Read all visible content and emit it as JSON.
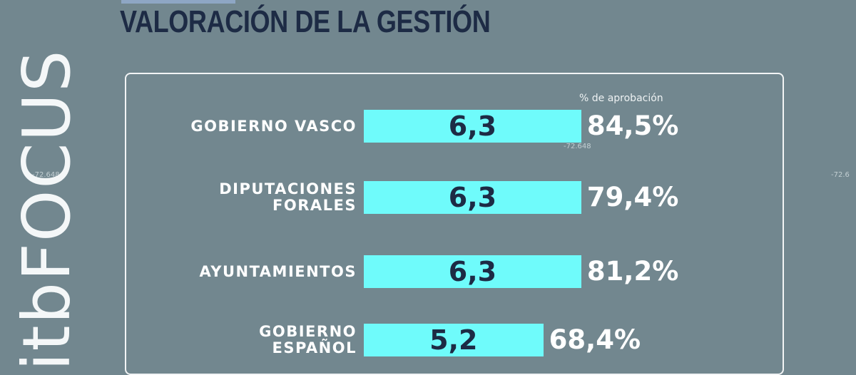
{
  "chart_data": {
    "type": "bar",
    "orientation": "horizontal",
    "title": "VALORACIÓN DE LA GESTIÓN",
    "watermark": "itbFOCUS",
    "background_labels": [
      "-72.648",
      "-72.648",
      "-72.6"
    ],
    "categories": [
      "GOBIERNO VASCO",
      "DIPUTACIONES FORALES",
      "AYUNTAMIENTOS",
      "GOBIERNO ESPAÑOL"
    ],
    "values": [
      6.3,
      6.3,
      6.3,
      5.2
    ],
    "value_labels": [
      "6,3",
      "6,3",
      "6,3",
      "5,2"
    ],
    "color": "#6ffbfb",
    "approval": {
      "label": "% de aprobación",
      "values": [
        84.5,
        79.4,
        81.2,
        68.4
      ],
      "value_labels": [
        "84,5%",
        "79,4%",
        "81,2%",
        "68,4%"
      ]
    }
  }
}
